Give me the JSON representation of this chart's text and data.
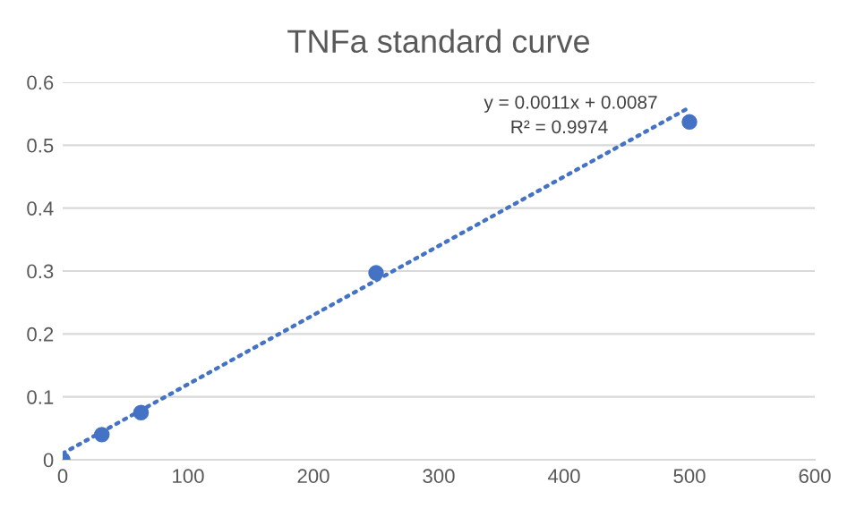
{
  "chart_data": {
    "type": "scatter",
    "title": "TNFa standard curve",
    "x": [
      0,
      31.25,
      62.5,
      250,
      500
    ],
    "series": [
      {
        "color": "#4472c4",
        "values": [
          0,
          0.04,
          0.075,
          0.297,
          0.537
        ],
        "marker": "circle"
      },
      {
        "type": "line",
        "color": "#4472c4",
        "x": [
          0,
          500
        ],
        "values": [
          0.01,
          0.56
        ],
        "line_style": "dotted",
        "marker": "none"
      }
    ],
    "xlim": [
      0,
      600
    ],
    "ylim": [
      0,
      0.6
    ],
    "xticks": [
      0,
      100,
      200,
      300,
      400,
      500,
      600
    ],
    "yticks": [
      0,
      0.1,
      0.2,
      0.3,
      0.4,
      0.5,
      0.6
    ],
    "grid": "y",
    "legend": false,
    "annotations": [
      "y = 0.0011x + 0.0087",
      "R² = 0.9974"
    ]
  }
}
